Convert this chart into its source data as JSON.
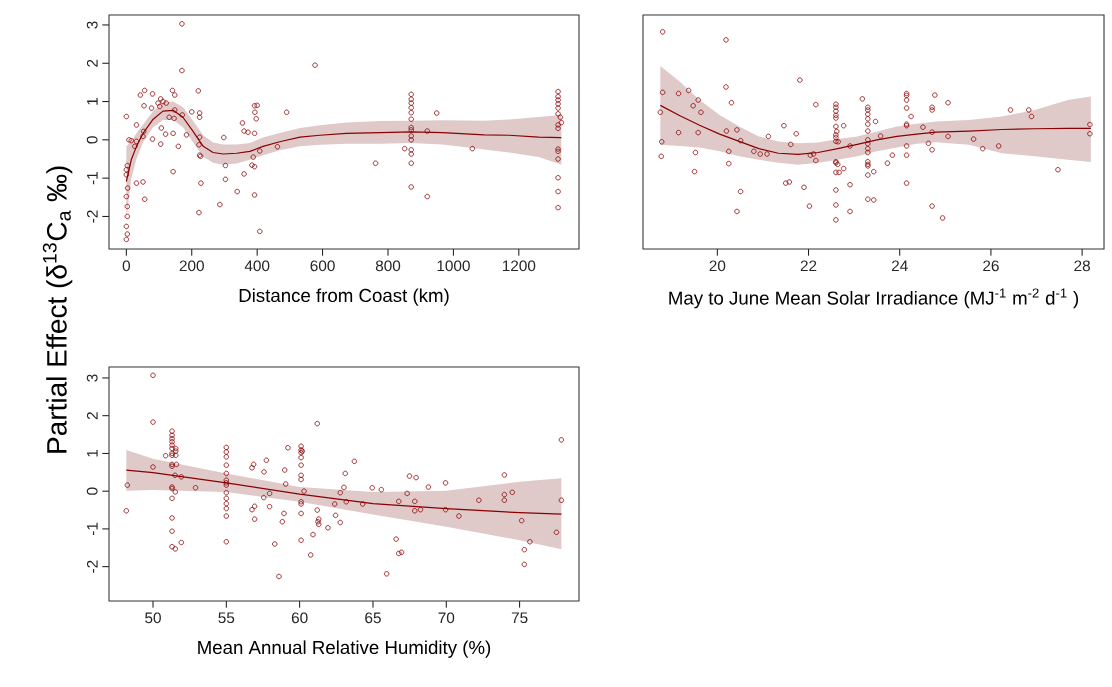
{
  "chart_data": [
    {
      "type": "scatter",
      "xlabel": "Distance from Coast (km)",
      "ylabel": "Partial Effect (δ$^{13}$C$_{a}$ ‰)",
      "xlim": [
        -53,
        1384
      ],
      "ylim": [
        -2.85,
        3.26
      ],
      "xticks": [
        0,
        200,
        400,
        600,
        800,
        1000,
        1200
      ],
      "yticks": [
        -2,
        -1,
        0,
        1,
        2,
        3
      ],
      "series": [
        {
          "type": "line",
          "color": "#8b0000",
          "x": [
            0,
            15,
            31,
            51,
            82,
            112,
            143,
            173,
            204,
            235,
            265,
            296,
            337,
            378,
            418,
            469,
            531,
            592,
            673,
            776,
            871,
            967,
            1094,
            1170,
            1261,
            1330
          ],
          "values": [
            -1.09,
            -0.52,
            -0.17,
            0.17,
            0.54,
            0.75,
            0.77,
            0.59,
            0.22,
            -0.17,
            -0.33,
            -0.37,
            -0.35,
            -0.3,
            -0.17,
            -0.05,
            0.07,
            0.12,
            0.17,
            0.19,
            0.21,
            0.19,
            0.13,
            0.12,
            0.07,
            0.06
          ],
          "upper": [
            -0.17,
            -0.03,
            0.17,
            0.4,
            0.75,
            0.98,
            1.0,
            0.85,
            0.5,
            0.12,
            -0.07,
            -0.12,
            -0.12,
            -0.08,
            0.06,
            0.18,
            0.31,
            0.38,
            0.45,
            0.49,
            0.5,
            0.51,
            0.5,
            0.53,
            0.6,
            0.65
          ],
          "lower": [
            -2.09,
            -1.0,
            -0.5,
            -0.06,
            0.33,
            0.52,
            0.52,
            0.33,
            -0.06,
            -0.44,
            -0.6,
            -0.65,
            -0.62,
            -0.52,
            -0.4,
            -0.27,
            -0.17,
            -0.13,
            -0.1,
            -0.1,
            -0.08,
            -0.12,
            -0.25,
            -0.33,
            -0.45,
            -0.65
          ]
        },
        {
          "marker": "circle",
          "color": "#8b0000",
          "x": [
            0,
            3,
            0,
            0,
            4,
            0,
            3,
            3,
            0,
            3,
            0,
            8,
            15,
            26,
            31,
            31,
            31,
            43,
            56,
            54,
            53,
            51,
            51,
            56,
            80,
            77,
            80,
            97,
            102,
            105,
            112,
            107,
            105,
            120,
            122,
            131,
            141,
            148,
            143,
            143,
            148,
            146,
            159,
            170,
            170,
            171,
            184,
            200,
            220,
            224,
            224,
            224,
            222,
            224,
            227,
            228,
            222,
            286,
            298,
            303,
            303,
            339,
            355,
            360,
            372,
            360,
            384,
            392,
            392,
            400,
            393,
            397,
            388,
            392,
            392,
            408,
            408,
            462,
            490,
            577,
            762,
            851,
            871,
            871,
            871,
            871,
            871,
            871,
            871,
            871,
            871,
            871,
            871,
            871,
            871,
            871,
            920,
            920,
            949,
            1058,
            1320,
            1320,
            1320,
            1320,
            1320,
            1320,
            1320,
            1320,
            1320,
            1320,
            1320,
            1320,
            1320,
            1320,
            1327,
            1330
          ],
          "values": [
            0.61,
            -0.67,
            -0.78,
            -0.91,
            -1.26,
            -1.48,
            -1.74,
            -2.0,
            -2.26,
            -2.46,
            -2.6,
            0,
            -0.02,
            -0.17,
            -0.04,
            0.39,
            -1.13,
            1.17,
            1.29,
            0.89,
            0.22,
            0.09,
            -1.1,
            -1.55,
            1.2,
            0.83,
            0.02,
            0.96,
            0.87,
            1.07,
            1.0,
            0.31,
            -0.11,
            0.15,
            0.96,
            0.59,
            1.29,
            1.17,
            0.17,
            -0.83,
            0.78,
            0.56,
            -0.17,
            3.03,
            1.81,
            0.65,
            0.13,
            0.73,
            1.28,
            0.7,
            0.59,
            0.07,
            -0.13,
            -0.4,
            -0.43,
            -1.13,
            -1.9,
            -1.69,
            0.06,
            -0.67,
            -1.03,
            -1.35,
            0.44,
            0.23,
            0.2,
            -0.89,
            -0.66,
            0.17,
            0.89,
            0.9,
            0.72,
            0.55,
            -0.45,
            -0.7,
            -1.44,
            -0.29,
            -2.39,
            -0.18,
            0.72,
            1.95,
            -0.61,
            -0.23,
            1.19,
            1.06,
            0.96,
            0.84,
            0.71,
            0.54,
            0.32,
            0.26,
            0.1,
            0,
            -0.26,
            -0.37,
            -0.61,
            -1.23,
            0.23,
            -1.48,
            0.7,
            -0.23,
            1.26,
            1.13,
            1.04,
            0.94,
            0.83,
            0.68,
            0.39,
            0.3,
            -0.24,
            -0.3,
            -0.5,
            -0.99,
            -1.35,
            -1.77,
            0.59,
            0.45
          ]
        }
      ]
    },
    {
      "type": "scatter",
      "xlabel": "May to June Mean Solar Irradiance (MJ$^{-1}$ m$^{-2}$ d$^{-1}$ )",
      "xlim": [
        18.37,
        28.48
      ],
      "ylim": [
        -2.85,
        3.26
      ],
      "xticks": [
        20,
        22,
        24,
        26,
        28
      ],
      "tick_labels": "x",
      "series": [
        {
          "type": "line",
          "color": "#8b0000",
          "x": [
            18.75,
            19.18,
            19.61,
            20.05,
            20.48,
            20.91,
            21.34,
            21.77,
            22.21,
            22.64,
            23.07,
            23.5,
            23.94,
            24.37,
            24.8,
            25.52,
            26.24,
            26.96,
            27.69,
            28.19
          ],
          "values": [
            0.9,
            0.63,
            0.38,
            0.15,
            -0.04,
            -0.23,
            -0.35,
            -0.38,
            -0.33,
            -0.23,
            -0.12,
            0,
            0.09,
            0.15,
            0.2,
            0.23,
            0.27,
            0.29,
            0.3,
            0.3
          ],
          "upper": [
            1.93,
            1.52,
            1.04,
            0.65,
            0.35,
            0.09,
            -0.04,
            -0.09,
            -0.07,
            0.02,
            0.09,
            0.22,
            0.35,
            0.42,
            0.48,
            0.52,
            0.61,
            0.78,
            1.04,
            1.13
          ],
          "lower": [
            -0.13,
            -0.16,
            -0.2,
            -0.3,
            -0.43,
            -0.52,
            -0.6,
            -0.65,
            -0.6,
            -0.52,
            -0.43,
            -0.3,
            -0.2,
            -0.1,
            -0.06,
            -0.13,
            -0.35,
            -0.43,
            -0.52,
            -0.58
          ]
        },
        {
          "marker": "circle",
          "color": "#8b0000",
          "x": [
            18.8,
            18.8,
            18.75,
            18.78,
            18.77,
            19.15,
            19.15,
            19.37,
            19.47,
            19.58,
            19.64,
            19.58,
            19.52,
            19.5,
            20.19,
            20.19,
            20.31,
            20.2,
            20.25,
            20.25,
            20.43,
            20.51,
            20.51,
            20.43,
            20.8,
            20.94,
            21.09,
            21.12,
            21.46,
            21.5,
            21.58,
            21.61,
            21.73,
            21.81,
            21.9,
            22.02,
            22.04,
            22.11,
            22.16,
            22.16,
            22.6,
            22.6,
            22.6,
            22.6,
            22.6,
            22.6,
            22.6,
            22.6,
            22.6,
            22.6,
            22.6,
            22.6,
            22.6,
            22.6,
            22.6,
            22.62,
            22.64,
            22.67,
            22.65,
            22.77,
            22.77,
            22.91,
            22.91,
            22.91,
            23.18,
            23.3,
            23.3,
            23.3,
            23.3,
            23.3,
            23.3,
            23.3,
            23.3,
            23.3,
            23.3,
            23.3,
            23.3,
            23.3,
            23.3,
            23.3,
            23.43,
            23.43,
            23.47,
            23.58,
            23.73,
            23.84,
            24.15,
            24.15,
            24.15,
            24.15,
            24.15,
            24.15,
            24.15,
            24.15,
            24.15,
            24.25,
            24.51,
            24.63,
            24.71,
            24.71,
            24.71,
            24.71,
            24.71,
            24.77,
            24.94,
            25.06,
            25.06,
            25.62,
            25.82,
            26.17,
            26.43,
            26.83,
            26.89,
            27.47,
            28.17,
            28.17
          ],
          "values": [
            2.82,
            1.24,
            0.72,
            -0.05,
            -0.43,
            1.21,
            0.19,
            1.29,
            0.89,
            1.04,
            0.72,
            0.19,
            -0.33,
            -0.83,
            2.61,
            1.38,
            0.97,
            0.23,
            -0.3,
            -0.62,
            0.26,
            -0.02,
            -1.35,
            -1.87,
            -0.3,
            -0.37,
            -0.37,
            0.09,
            0.37,
            -1.13,
            -1.1,
            -0.12,
            0.16,
            1.56,
            -1.24,
            -1.73,
            -0.4,
            -0.37,
            0.92,
            -0.54,
            0.93,
            0.85,
            0.75,
            0.64,
            0.57,
            0.35,
            0.13,
            0.06,
            -0.04,
            -0.57,
            -0.6,
            -0.85,
            -1.31,
            -1.7,
            -2.09,
            0.22,
            -0.64,
            -0.85,
            -0.05,
            0.37,
            -0.75,
            -0.16,
            -1.17,
            -1.87,
            1.07,
            0.85,
            0.78,
            0.67,
            0.55,
            0.41,
            0.23,
            0,
            -0.1,
            -0.23,
            -0.33,
            -0.57,
            -0.64,
            -0.68,
            -0.92,
            -1.55,
            -1.57,
            -0.83,
            0.48,
            0.1,
            -0.61,
            -0.4,
            1.21,
            1.16,
            1.04,
            0.83,
            0.41,
            0.37,
            -0.16,
            -0.4,
            -1.13,
            0.61,
            0.33,
            -0.09,
            0.85,
            0.78,
            0.2,
            -0.26,
            -1.73,
            1.17,
            -2.04,
            0.97,
            0.09,
            0.02,
            -0.23,
            -0.16,
            0.78,
            0.78,
            0.61,
            -0.78,
            0.4,
            0.16
          ]
        }
      ]
    },
    {
      "type": "scatter",
      "xlabel": "Mean Annual Relative Humidity (%)",
      "xlim": [
        47.0,
        79.05
      ],
      "ylim": [
        -2.91,
        3.29
      ],
      "xticks": [
        50,
        55,
        60,
        65,
        70,
        75
      ],
      "yticks": [
        -2,
        -1,
        0,
        1,
        2,
        3
      ],
      "series": [
        {
          "type": "line",
          "color": "#8b0000",
          "x": [
            48.18,
            50,
            55,
            60,
            65,
            70,
            75,
            77.85
          ],
          "values": [
            0.56,
            0.49,
            0.22,
            -0.08,
            -0.33,
            -0.46,
            -0.57,
            -0.61
          ],
          "upper": [
            1.09,
            0.86,
            0.47,
            0.11,
            -0.02,
            0.01,
            0.25,
            0.34
          ],
          "lower": [
            0.01,
            0.03,
            -0.02,
            -0.28,
            -0.62,
            -0.94,
            -1.3,
            -1.54
          ]
        },
        {
          "marker": "circle",
          "color": "#8b0000",
          "x": [
            48.18,
            48.25,
            50,
            50,
            50,
            50.86,
            51.3,
            51.3,
            51.3,
            51.3,
            51.3,
            51.3,
            51.3,
            51.3,
            51.3,
            51.3,
            51.3,
            51.3,
            51.3,
            51.3,
            51.3,
            51.3,
            51.55,
            51.55,
            51.55,
            51.6,
            51.5,
            51.52,
            51.52,
            51.93,
            51.93,
            52.9,
            55,
            55,
            55,
            55,
            55,
            55,
            55,
            55,
            55,
            55,
            55,
            55,
            55,
            55,
            56.75,
            56.86,
            56.75,
            56.93,
            56.93,
            57.57,
            57.73,
            57.55,
            57.95,
            57.95,
            58.3,
            58.59,
            58.82,
            58.93,
            58.98,
            59.05,
            59.2,
            60.1,
            60.1,
            60.1,
            60.1,
            60.1,
            60.1,
            60.1,
            60.1,
            60.1,
            60.1,
            60.1,
            60.18,
            60.3,
            60.91,
            60.75,
            61.2,
            61.2,
            61.25,
            61.3,
            61.3,
            61.93,
            62.39,
            62.45,
            62.77,
            62.77,
            63.02,
            63.11,
            63.18,
            63.73,
            64.3,
            64.95,
            65.57,
            65.93,
            66.58,
            66.76,
            66.95,
            66.76,
            67.33,
            67.49,
            67.94,
            67.85,
            67.85,
            68.24,
            68.78,
            69.95,
            69.95,
            70.86,
            72.22,
            73.96,
            73.96,
            73.96,
            74.5,
            75.14,
            75.32,
            75.32,
            75.7,
            77.51,
            77.85,
            77.85
          ],
          "values": [
            -0.52,
            0.16,
            3.07,
            1.83,
            0.64,
            0.94,
            1.59,
            1.48,
            1.39,
            1.31,
            1.22,
            1.13,
            1.0,
            0.95,
            0.71,
            0.66,
            0.11,
            0.07,
            -0.19,
            -0.71,
            -1.06,
            -1.47,
            1.13,
            1.06,
            0.95,
            0.71,
            0.42,
            -0.02,
            -1.53,
            0.38,
            -1.36,
            0.09,
            1.16,
            1.04,
            0.91,
            0.69,
            0.47,
            0.29,
            0.22,
            0.16,
            -0.04,
            -0.19,
            -0.33,
            -0.46,
            -0.66,
            -1.34,
            0.62,
            0.71,
            -0.49,
            -0.4,
            -0.74,
            0.51,
            0.82,
            -0.17,
            -0.06,
            -0.41,
            -1.4,
            -2.26,
            -0.81,
            -0.59,
            0.56,
            0.19,
            1.15,
            1.19,
            1.09,
            1.02,
            0.89,
            0.69,
            0.42,
            0.31,
            -0.28,
            -0.34,
            -0.59,
            -1.3,
            1.06,
            0,
            -1.15,
            -1.69,
            1.79,
            -0.5,
            -0.81,
            -0.88,
            -0.74,
            -0.97,
            -0.34,
            -0.64,
            -0.04,
            -0.83,
            0.1,
            0.47,
            -0.28,
            0.79,
            -0.34,
            0.09,
            0.04,
            -2.19,
            -1.27,
            -1.65,
            -1.62,
            -0.27,
            -0.06,
            0.4,
            0.36,
            -0.27,
            -0.52,
            -0.49,
            0.11,
            0.22,
            -0.49,
            -0.66,
            -0.24,
            0.43,
            -0.09,
            -0.24,
            -0.03,
            -0.78,
            -1.55,
            -1.94,
            -1.34,
            -1.09,
            1.36,
            -0.24
          ]
        }
      ]
    }
  ]
}
